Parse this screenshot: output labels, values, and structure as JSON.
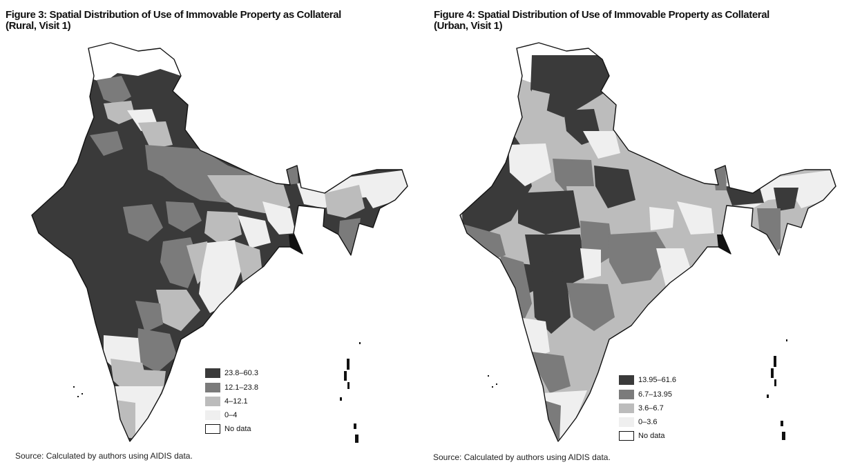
{
  "colors": {
    "class1": "#3a3a3a",
    "class2": "#7b7b7b",
    "class3": "#bcbcbc",
    "class4": "#efefef",
    "nodata": "#ffffff",
    "border": "#111111"
  },
  "figures": [
    {
      "title_line1": "Figure 3: Spatial Distribution of Use of Immovable Property as Collateral",
      "title_line2": "(Rural, Visit 1)",
      "legend": [
        "23.8–60.3",
        "12.1–23.8",
        "4–12.1",
        "0–4",
        "No data"
      ],
      "source": "Source: Calculated by authors using AIDIS data."
    },
    {
      "title_line1": "Figure 4: Spatial Distribution of Use of Immovable Property as Collateral",
      "title_line2": "(Urban, Visit 1)",
      "legend": [
        "13.95–61.6",
        "6.7–13.95",
        "3.6–6.7",
        "0–3.6",
        "No data"
      ],
      "source": "Source: Calculated by authors using AIDIS data."
    }
  ]
}
